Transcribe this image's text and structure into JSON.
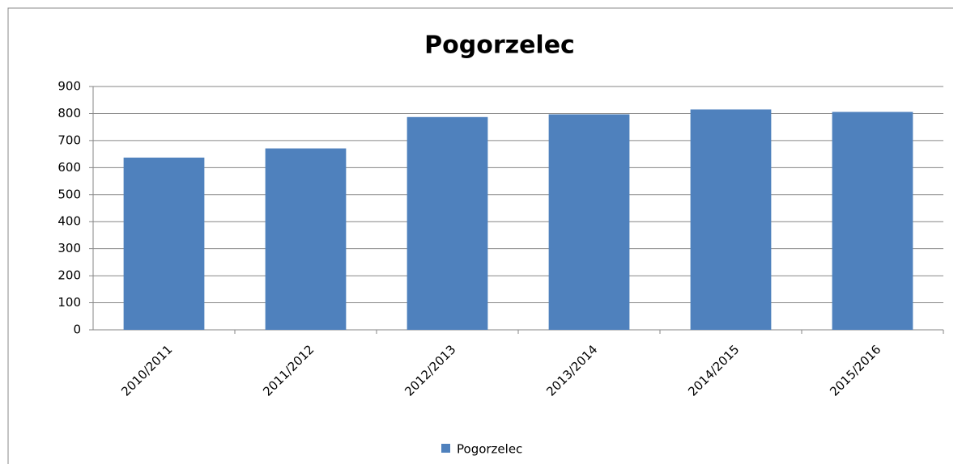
{
  "chart_data": {
    "type": "bar",
    "title": "Pogorzelec",
    "categories": [
      "2010/2011",
      "2011/2012",
      "2012/2013",
      "2013/2014",
      "2014/2015",
      "2015/2016"
    ],
    "series": [
      {
        "name": "Pogorzelec",
        "color": "#4f81bd",
        "values": [
          637,
          671,
          787,
          797,
          815,
          806
        ]
      }
    ],
    "ylim": [
      0,
      900
    ],
    "yticks": [
      0,
      100,
      200,
      300,
      400,
      500,
      600,
      700,
      800,
      900
    ],
    "grid": true,
    "legend": "bottom"
  }
}
